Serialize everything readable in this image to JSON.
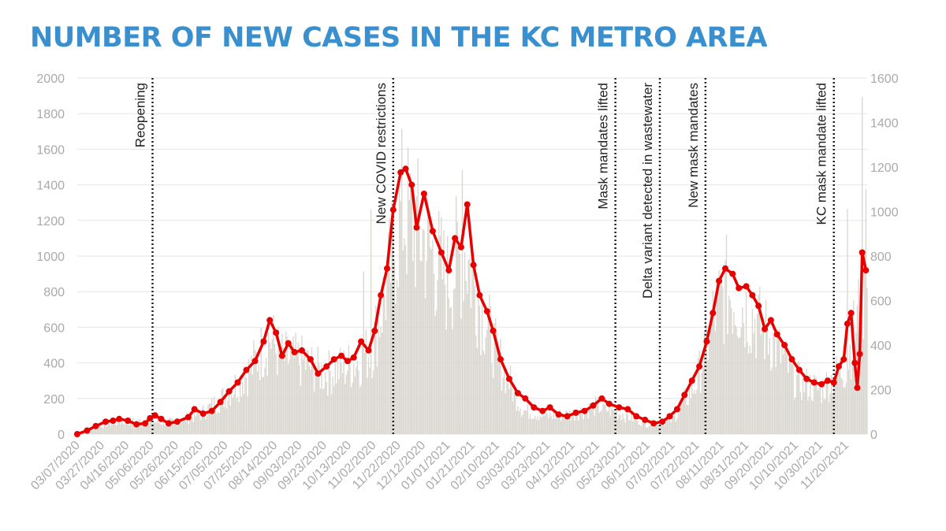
{
  "title": "NUMBER OF NEW CASES IN THE KC METRO AREA",
  "colors": {
    "title": "#3a8fce",
    "bars": "#d9d6cf",
    "line": "#e60000",
    "axis_text": "#aaaaaa",
    "grid": "#e6e6e6"
  },
  "chart_data": {
    "type": "bar",
    "combo": "daily cases shown as bars (right axis) with a red line-and-marker series (left axis)",
    "title": "NUMBER OF NEW CASES IN THE KC METRO AREA",
    "xlabel": "",
    "ylabel": "",
    "grid": true,
    "left_axis": {
      "ylim": [
        0,
        2000
      ],
      "ticks": [
        0,
        200,
        400,
        600,
        800,
        1000,
        1200,
        1400,
        1600,
        1800,
        2000
      ]
    },
    "right_axis": {
      "ylim": [
        0,
        1600
      ],
      "ticks": [
        0,
        200,
        400,
        600,
        800,
        1000,
        1200,
        1400,
        1600
      ]
    },
    "x_range": [
      "2020-03-07",
      "2021-12-07"
    ],
    "x_tick_labels": [
      "03/07/2020",
      "03/27/2020",
      "04/16/2020",
      "05/06/2020",
      "05/26/2020",
      "06/15/2020",
      "07/05/2020",
      "07/25/2020",
      "08/14/2020",
      "09/03/2020",
      "09/23/2020",
      "10/13/2020",
      "11/02/2020",
      "11/22/2020",
      "12/12/2020",
      "01/01/2021",
      "01/21/2021",
      "02/10/2021",
      "03/03/2021",
      "03/23/2021",
      "04/12/2021",
      "05/02/2021",
      "05/23/2021",
      "06/12/2021",
      "07/02/2021",
      "07/22/2021",
      "08/11/2021",
      "08/31/2021",
      "09/20/2021",
      "10/10/2021",
      "10/30/2021",
      "11/20/2021"
    ],
    "annotations": [
      {
        "date": "2020-05-07",
        "label": "Reopening"
      },
      {
        "date": "2020-11-18",
        "label": "New COVID restrictions"
      },
      {
        "date": "2021-05-17",
        "label": "Mask mandates lifted"
      },
      {
        "date": "2021-06-22",
        "label": "Delta variant detected in wastewater"
      },
      {
        "date": "2021-07-29",
        "label": "New mask mandates"
      },
      {
        "date": "2021-11-10",
        "label": "KC mask mandate lifted"
      }
    ],
    "line_series": {
      "axis": "left",
      "points": [
        [
          "2020-03-07",
          0
        ],
        [
          "2020-03-15",
          20
        ],
        [
          "2020-03-22",
          45
        ],
        [
          "2020-03-30",
          70
        ],
        [
          "2020-04-05",
          75
        ],
        [
          "2020-04-10",
          85
        ],
        [
          "2020-04-17",
          75
        ],
        [
          "2020-04-24",
          55
        ],
        [
          "2020-05-01",
          60
        ],
        [
          "2020-05-05",
          90
        ],
        [
          "2020-05-09",
          105
        ],
        [
          "2020-05-14",
          85
        ],
        [
          "2020-05-20",
          60
        ],
        [
          "2020-05-27",
          70
        ],
        [
          "2020-06-05",
          95
        ],
        [
          "2020-06-10",
          140
        ],
        [
          "2020-06-17",
          115
        ],
        [
          "2020-06-24",
          130
        ],
        [
          "2020-07-01",
          180
        ],
        [
          "2020-07-08",
          240
        ],
        [
          "2020-07-15",
          290
        ],
        [
          "2020-07-22",
          360
        ],
        [
          "2020-07-29",
          410
        ],
        [
          "2020-08-05",
          520
        ],
        [
          "2020-08-10",
          640
        ],
        [
          "2020-08-15",
          570
        ],
        [
          "2020-08-20",
          440
        ],
        [
          "2020-08-25",
          510
        ],
        [
          "2020-08-30",
          460
        ],
        [
          "2020-09-05",
          470
        ],
        [
          "2020-09-12",
          420
        ],
        [
          "2020-09-18",
          340
        ],
        [
          "2020-09-25",
          380
        ],
        [
          "2020-10-01",
          420
        ],
        [
          "2020-10-07",
          440
        ],
        [
          "2020-10-12",
          410
        ],
        [
          "2020-10-17",
          430
        ],
        [
          "2020-10-23",
          520
        ],
        [
          "2020-10-29",
          470
        ],
        [
          "2020-11-03",
          580
        ],
        [
          "2020-11-08",
          780
        ],
        [
          "2020-11-13",
          930
        ],
        [
          "2020-11-18",
          1260
        ],
        [
          "2020-11-24",
          1470
        ],
        [
          "2020-11-28",
          1490
        ],
        [
          "2020-12-03",
          1400
        ],
        [
          "2020-12-07",
          1160
        ],
        [
          "2020-12-13",
          1350
        ],
        [
          "2020-12-20",
          1140
        ],
        [
          "2020-12-27",
          1020
        ],
        [
          "2021-01-02",
          920
        ],
        [
          "2021-01-07",
          1100
        ],
        [
          "2021-01-12",
          1050
        ],
        [
          "2021-01-17",
          1290
        ],
        [
          "2021-01-22",
          950
        ],
        [
          "2021-01-27",
          780
        ],
        [
          "2021-02-02",
          690
        ],
        [
          "2021-02-07",
          580
        ],
        [
          "2021-02-13",
          420
        ],
        [
          "2021-02-20",
          310
        ],
        [
          "2021-02-27",
          230
        ],
        [
          "2021-03-05",
          200
        ],
        [
          "2021-03-12",
          150
        ],
        [
          "2021-03-19",
          130
        ],
        [
          "2021-03-25",
          150
        ],
        [
          "2021-04-01",
          110
        ],
        [
          "2021-04-08",
          100
        ],
        [
          "2021-04-15",
          120
        ],
        [
          "2021-04-22",
          130
        ],
        [
          "2021-04-29",
          160
        ],
        [
          "2021-05-06",
          200
        ],
        [
          "2021-05-12",
          170
        ],
        [
          "2021-05-20",
          150
        ],
        [
          "2021-05-27",
          140
        ],
        [
          "2021-06-03",
          100
        ],
        [
          "2021-06-10",
          80
        ],
        [
          "2021-06-17",
          60
        ],
        [
          "2021-06-24",
          70
        ],
        [
          "2021-06-30",
          100
        ],
        [
          "2021-07-06",
          140
        ],
        [
          "2021-07-12",
          220
        ],
        [
          "2021-07-18",
          300
        ],
        [
          "2021-07-24",
          380
        ],
        [
          "2021-07-30",
          520
        ],
        [
          "2021-08-04",
          680
        ],
        [
          "2021-08-09",
          860
        ],
        [
          "2021-08-14",
          930
        ],
        [
          "2021-08-20",
          900
        ],
        [
          "2021-08-25",
          820
        ],
        [
          "2021-08-31",
          830
        ],
        [
          "2021-09-05",
          780
        ],
        [
          "2021-09-10",
          720
        ],
        [
          "2021-09-15",
          590
        ],
        [
          "2021-09-20",
          640
        ],
        [
          "2021-09-25",
          560
        ],
        [
          "2021-10-01",
          500
        ],
        [
          "2021-10-07",
          420
        ],
        [
          "2021-10-13",
          360
        ],
        [
          "2021-10-19",
          310
        ],
        [
          "2021-10-25",
          290
        ],
        [
          "2021-10-31",
          280
        ],
        [
          "2021-11-05",
          300
        ],
        [
          "2021-11-10",
          290
        ],
        [
          "2021-11-14",
          380
        ],
        [
          "2021-11-18",
          420
        ],
        [
          "2021-11-21",
          620
        ],
        [
          "2021-11-24",
          680
        ],
        [
          "2021-11-27",
          400
        ],
        [
          "2021-11-29",
          260
        ],
        [
          "2021-12-01",
          450
        ],
        [
          "2021-12-03",
          1020
        ],
        [
          "2021-12-06",
          920
        ]
      ]
    },
    "bar_series": {
      "axis": "right",
      "note": "daily new cases; envelope read from the gray bars",
      "envelope": [
        [
          "2020-03-07",
          0
        ],
        [
          "2020-03-30",
          50
        ],
        [
          "2020-04-15",
          65
        ],
        [
          "2020-05-05",
          60
        ],
        [
          "2020-05-26",
          60
        ],
        [
          "2020-06-15",
          100
        ],
        [
          "2020-07-05",
          190
        ],
        [
          "2020-07-25",
          320
        ],
        [
          "2020-08-10",
          480
        ],
        [
          "2020-08-20",
          380
        ],
        [
          "2020-09-05",
          360
        ],
        [
          "2020-09-23",
          300
        ],
        [
          "2020-10-13",
          340
        ],
        [
          "2020-10-25",
          380
        ],
        [
          "2020-11-02",
          450
        ],
        [
          "2020-11-15",
          800
        ],
        [
          "2020-11-25",
          1120
        ],
        [
          "2020-12-12",
          980
        ],
        [
          "2021-01-01",
          760
        ],
        [
          "2021-01-15",
          920
        ],
        [
          "2021-01-25",
          700
        ],
        [
          "2021-02-10",
          400
        ],
        [
          "2021-03-03",
          120
        ],
        [
          "2021-03-23",
          90
        ],
        [
          "2021-04-12",
          100
        ],
        [
          "2021-05-02",
          140
        ],
        [
          "2021-05-23",
          100
        ],
        [
          "2021-06-12",
          50
        ],
        [
          "2021-07-02",
          70
        ],
        [
          "2021-07-22",
          260
        ],
        [
          "2021-08-05",
          600
        ],
        [
          "2021-08-15",
          720
        ],
        [
          "2021-08-31",
          620
        ],
        [
          "2021-09-20",
          480
        ],
        [
          "2021-10-10",
          270
        ],
        [
          "2021-10-30",
          220
        ],
        [
          "2021-11-20",
          340
        ],
        [
          "2021-12-07",
          780
        ]
      ],
      "notable_spikes": [
        [
          "2020-10-25",
          730
        ],
        [
          "2020-10-31",
          1010
        ],
        [
          "2021-01-08",
          1070
        ],
        [
          "2021-01-13",
          1185
        ],
        [
          "2021-11-21",
          1010
        ],
        [
          "2021-12-03",
          1515
        ],
        [
          "2021-12-06",
          1100
        ]
      ]
    }
  }
}
